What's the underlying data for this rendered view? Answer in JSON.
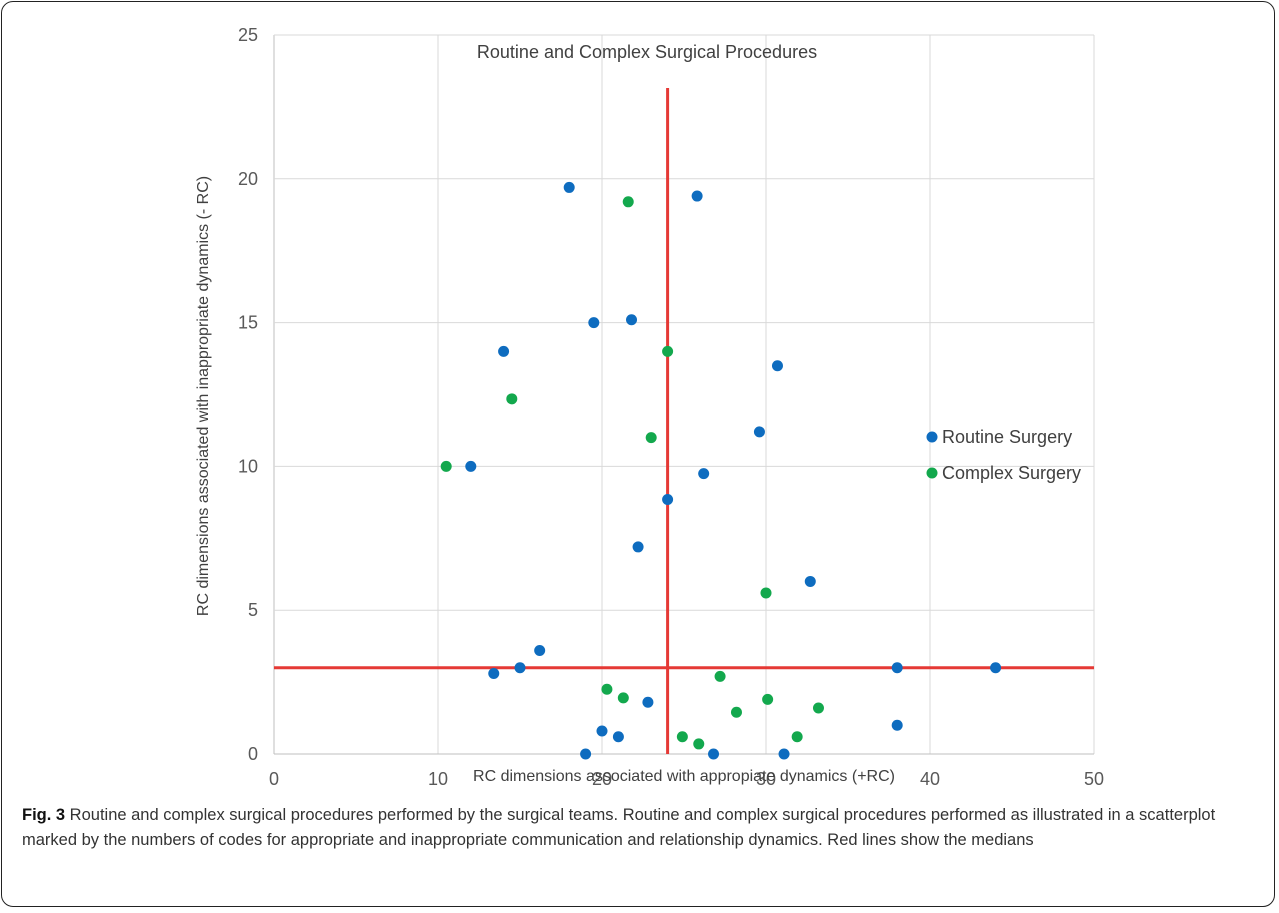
{
  "chart_data": {
    "type": "scatter",
    "title": "Routine and Complex Surgical Procedures",
    "xlabel": "RC dimensions associated with appropiate dynamics (+RC)",
    "ylabel": "RC dimensions associated with inappropriate dynamics (- RC)",
    "xlim": [
      0,
      50
    ],
    "ylim": [
      0,
      25
    ],
    "x_ticks": [
      "0",
      "10",
      "20",
      "30",
      "40",
      "50"
    ],
    "y_ticks": [
      "0",
      "5",
      "10",
      "15",
      "20",
      "25"
    ],
    "grid": "vertical and horizontal gridlines",
    "legend_placement": "right",
    "median_lines": {
      "x": 24,
      "y": 3,
      "color": "#e53935"
    },
    "series": [
      {
        "name": "Routine Surgery",
        "color": "#0e6cbf",
        "points": [
          [
            18,
            19.7
          ],
          [
            25.8,
            19.4
          ],
          [
            19.5,
            15
          ],
          [
            21.8,
            15.1
          ],
          [
            14,
            14
          ],
          [
            30.7,
            13.5
          ],
          [
            29.6,
            11.2
          ],
          [
            12,
            10
          ],
          [
            26.2,
            9.75
          ],
          [
            24,
            8.85
          ],
          [
            22.2,
            7.2
          ],
          [
            32.7,
            6
          ],
          [
            16.2,
            3.6
          ],
          [
            15,
            3
          ],
          [
            13.4,
            2.8
          ],
          [
            38,
            3
          ],
          [
            44,
            3
          ],
          [
            22.8,
            1.8
          ],
          [
            20,
            0.8
          ],
          [
            21,
            0.6
          ],
          [
            38,
            1
          ],
          [
            19,
            0
          ],
          [
            26.8,
            0
          ],
          [
            31.1,
            0
          ]
        ]
      },
      {
        "name": "Complex Surgery",
        "color": "#13a84d",
        "points": [
          [
            21.6,
            19.2
          ],
          [
            24,
            14
          ],
          [
            14.5,
            12.35
          ],
          [
            23,
            11
          ],
          [
            10.5,
            10
          ],
          [
            30,
            5.6
          ],
          [
            20.3,
            2.25
          ],
          [
            21.3,
            1.95
          ],
          [
            27.2,
            2.7
          ],
          [
            30.1,
            1.9
          ],
          [
            28.2,
            1.45
          ],
          [
            33.2,
            1.6
          ],
          [
            24.9,
            0.6
          ],
          [
            25.9,
            0.35
          ],
          [
            31.9,
            0.6
          ]
        ]
      }
    ]
  },
  "caption": {
    "label": "Fig. 3",
    "text": " Routine and complex surgical procedures performed by the surgical teams. Routine and complex surgical procedures performed as illustrated in a scatterplot marked by the numbers of codes for appropriate and inappropriate communication and relationship dynamics. Red lines show the medians"
  }
}
